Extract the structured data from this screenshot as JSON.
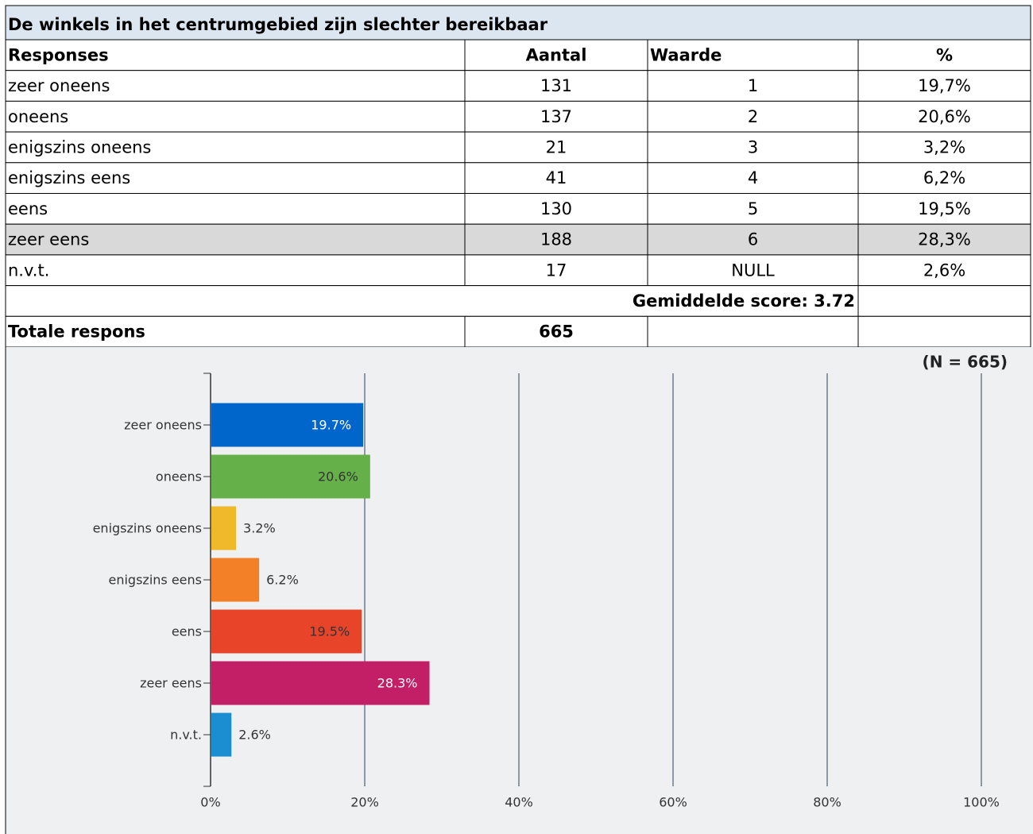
{
  "table": {
    "title": "De winkels in het centrumgebied zijn slechter bereikbaar",
    "header": [
      "Responses",
      "Aantal",
      "Waarde",
      "%"
    ],
    "rows": [
      [
        "zeer oneens",
        "131",
        "1",
        "19,7%"
      ],
      [
        "oneens",
        "137",
        "2",
        "20,6%"
      ],
      [
        "enigszins oneens",
        "21",
        "3",
        "3,2%"
      ],
      [
        "enigszins eens",
        "41",
        "4",
        "6,2%"
      ],
      [
        "eens",
        "130",
        "5",
        "19,5%"
      ],
      [
        "zeer eens",
        "188",
        "6",
        "28,3%"
      ],
      [
        "n.v.t.",
        "17",
        "NULL",
        "2,6%"
      ]
    ],
    "average": "Gemiddelde score: 3.72",
    "total_label": "Totale respons",
    "total": "665"
  },
  "chart_data": {
    "type": "hbar",
    "annotation": "(N = 665)",
    "categories": [
      "zeer oneens",
      "oneens",
      "enigszins oneens",
      "enigszins eens",
      "eens",
      "zeer eens",
      "n.v.t."
    ],
    "values": [
      19.7,
      20.6,
      3.2,
      6.2,
      19.5,
      28.3,
      2.6
    ],
    "value_labels": [
      "19.7%",
      "20.6%",
      "3.2%",
      "6.2%",
      "19.5%",
      "28.3%",
      "2.6%"
    ],
    "colors": [
      "#0066cc",
      "#66b04a",
      "#f0b92a",
      "#f37f27",
      "#e8442a",
      "#c21f66",
      "#1a8ed0"
    ],
    "xlim": [
      0,
      100
    ],
    "xticks": [
      {
        "value": 0,
        "label": "0%"
      },
      {
        "value": 20,
        "label": "20%"
      },
      {
        "value": 40,
        "label": "40%"
      },
      {
        "value": 60,
        "label": "60%"
      },
      {
        "value": 80,
        "label": "80%"
      },
      {
        "value": 100,
        "label": "100%"
      }
    ],
    "grid": true
  }
}
